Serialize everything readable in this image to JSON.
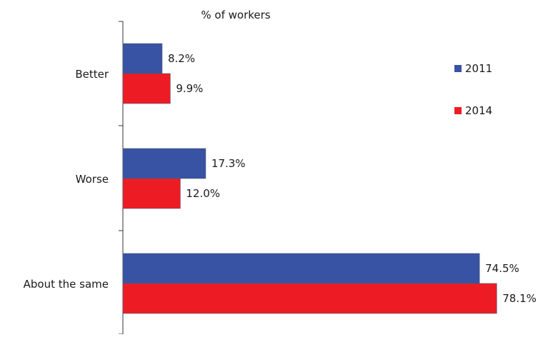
{
  "chart_data": {
    "type": "bar",
    "orientation": "horizontal",
    "title": "% of workers",
    "categories": [
      "Better",
      "Worse",
      "About the same"
    ],
    "series": [
      {
        "name": "2011",
        "color": "#3853a4",
        "values": [
          8.2,
          17.3,
          74.5
        ],
        "labels": [
          "8.2%",
          "17.3%",
          "74.5%"
        ]
      },
      {
        "name": "2014",
        "color": "#ed1c24",
        "values": [
          9.9,
          12.0,
          78.1
        ],
        "labels": [
          "9.9%",
          "12.0%",
          "78.1%"
        ]
      }
    ],
    "xlim": [
      0,
      80
    ],
    "grid": false,
    "legend_position": "right"
  }
}
